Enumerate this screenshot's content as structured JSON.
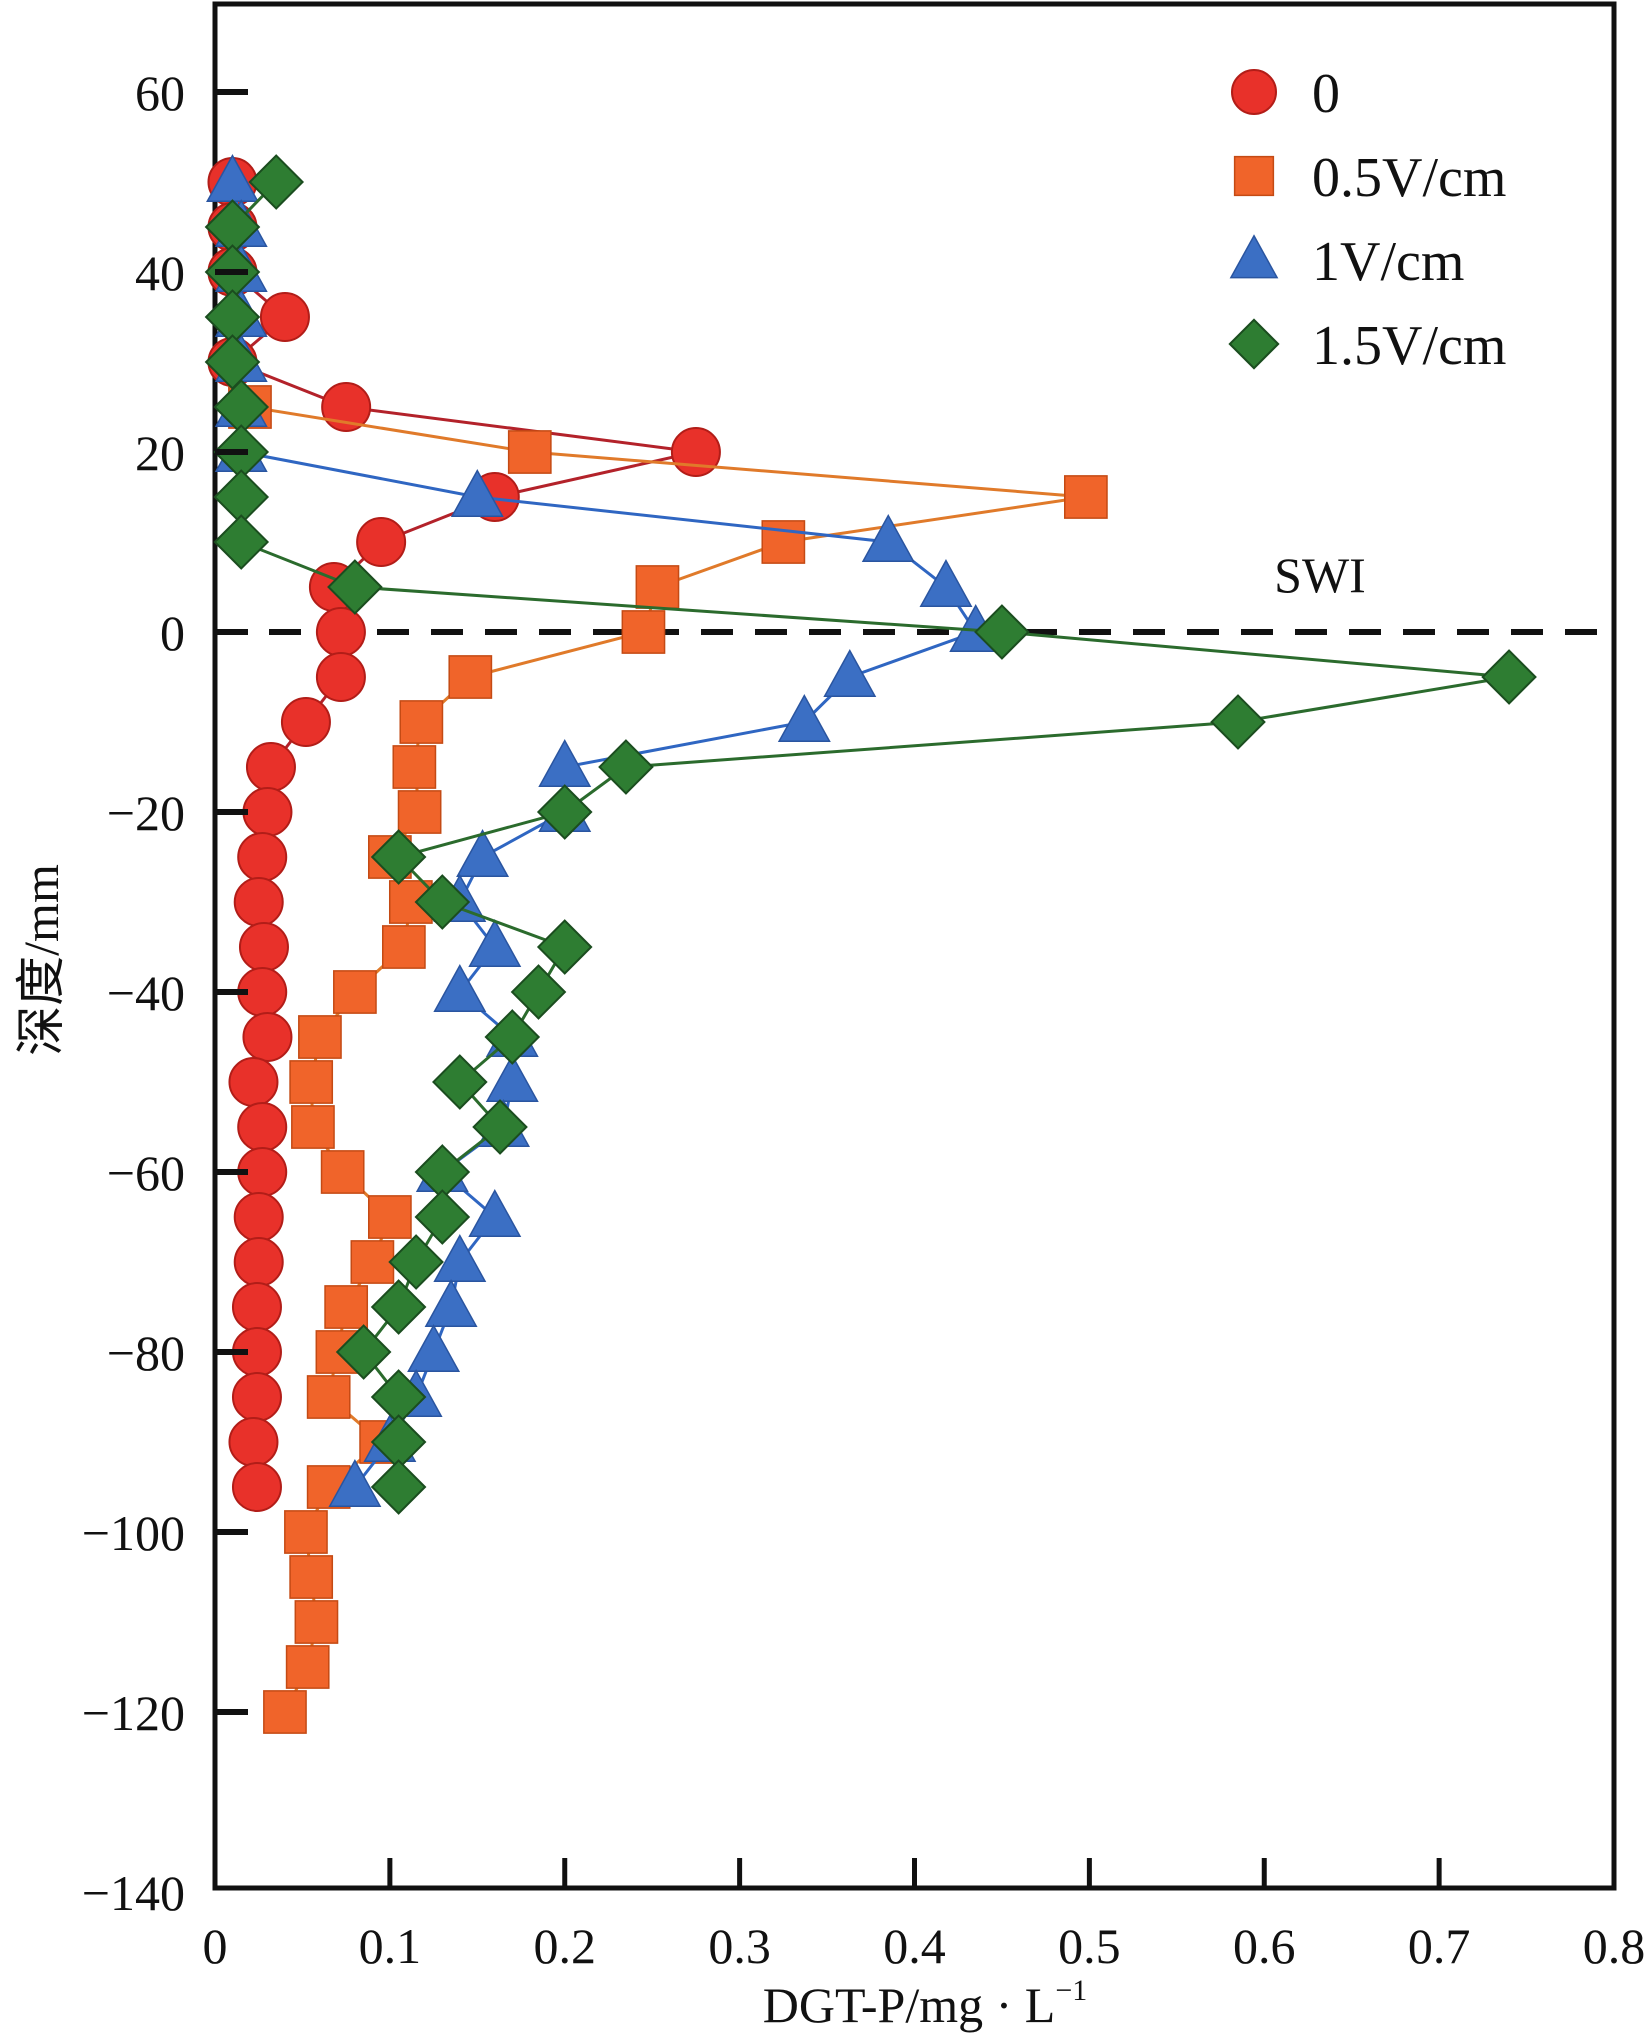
{
  "chart_data": {
    "type": "line",
    "title": "",
    "xlabel": "DGT-P/mg · L",
    "xlabel_superscript": "−1",
    "ylabel": "深度/mm",
    "xlim": [
      0,
      0.8
    ],
    "ylim": [
      -140,
      70
    ],
    "x_ticks": [
      0,
      0.1,
      0.2,
      0.3,
      0.4,
      0.5,
      0.6,
      0.7,
      0.8
    ],
    "x_tick_labels": [
      "0",
      "0.1",
      "0.2",
      "0.3",
      "0.4",
      "0.5",
      "0.6",
      "0.7",
      "0.8"
    ],
    "y_ticks": [
      60,
      40,
      20,
      0,
      -20,
      -40,
      -60,
      -80,
      -100,
      -120,
      -140
    ],
    "y_tick_labels": [
      "60",
      "40",
      "20",
      "0",
      "−20",
      "−40",
      "−60",
      "−80",
      "−100",
      "−120",
      "−140"
    ],
    "grid": false,
    "legend_position": "top-right",
    "annotations": [
      {
        "text": "SWI",
        "type": "reference-line",
        "y": 0,
        "style": "dashed"
      }
    ],
    "series": [
      {
        "name": "0",
        "marker": "circle",
        "color": "#e8312a",
        "points": [
          [
            0.01,
            50
          ],
          [
            0.01,
            45
          ],
          [
            0.01,
            40
          ],
          [
            0.04,
            35
          ],
          [
            0.01,
            30
          ],
          [
            0.075,
            25
          ],
          [
            0.275,
            20
          ],
          [
            0.16,
            15
          ],
          [
            0.095,
            10
          ],
          [
            0.068,
            5
          ],
          [
            0.072,
            0
          ],
          [
            0.072,
            -5
          ],
          [
            0.052,
            -10
          ],
          [
            0.032,
            -15
          ],
          [
            0.03,
            -20
          ],
          [
            0.027,
            -25
          ],
          [
            0.025,
            -30
          ],
          [
            0.028,
            -35
          ],
          [
            0.027,
            -40
          ],
          [
            0.03,
            -45
          ],
          [
            0.022,
            -50
          ],
          [
            0.027,
            -55
          ],
          [
            0.027,
            -60
          ],
          [
            0.025,
            -65
          ],
          [
            0.025,
            -70
          ],
          [
            0.024,
            -75
          ],
          [
            0.024,
            -80
          ],
          [
            0.024,
            -85
          ],
          [
            0.022,
            -90
          ],
          [
            0.024,
            -95
          ]
        ]
      },
      {
        "name": "0.5V/cm",
        "marker": "square",
        "color": "#f0642a",
        "points": [
          [
            0.02,
            25
          ],
          [
            0.18,
            20
          ],
          [
            0.498,
            15
          ],
          [
            0.325,
            10
          ],
          [
            0.253,
            5
          ],
          [
            0.245,
            0
          ],
          [
            0.146,
            -5
          ],
          [
            0.118,
            -10
          ],
          [
            0.114,
            -15
          ],
          [
            0.117,
            -20
          ],
          [
            0.1,
            -25
          ],
          [
            0.112,
            -30
          ],
          [
            0.108,
            -35
          ],
          [
            0.08,
            -40
          ],
          [
            0.06,
            -45
          ],
          [
            0.055,
            -50
          ],
          [
            0.056,
            -55
          ],
          [
            0.073,
            -60
          ],
          [
            0.1,
            -65
          ],
          [
            0.09,
            -70
          ],
          [
            0.075,
            -75
          ],
          [
            0.07,
            -80
          ],
          [
            0.065,
            -85
          ],
          [
            0.095,
            -90
          ],
          [
            0.065,
            -95
          ],
          [
            0.052,
            -100
          ],
          [
            0.055,
            -105
          ],
          [
            0.058,
            -110
          ],
          [
            0.053,
            -115
          ],
          [
            0.04,
            -120
          ]
        ]
      },
      {
        "name": "1V/cm",
        "marker": "triangle",
        "color": "#3b6fc4",
        "points": [
          [
            0.01,
            50
          ],
          [
            0.015,
            45
          ],
          [
            0.015,
            40
          ],
          [
            0.015,
            35
          ],
          [
            0.015,
            30
          ],
          [
            0.015,
            25
          ],
          [
            0.015,
            20
          ],
          [
            0.15,
            15
          ],
          [
            0.385,
            10
          ],
          [
            0.418,
            5
          ],
          [
            0.435,
            0
          ],
          [
            0.363,
            -5
          ],
          [
            0.337,
            -10
          ],
          [
            0.2,
            -15
          ],
          [
            0.2,
            -20
          ],
          [
            0.153,
            -25
          ],
          [
            0.14,
            -30
          ],
          [
            0.16,
            -35
          ],
          [
            0.14,
            -40
          ],
          [
            0.17,
            -45
          ],
          [
            0.17,
            -50
          ],
          [
            0.165,
            -55
          ],
          [
            0.13,
            -60
          ],
          [
            0.16,
            -65
          ],
          [
            0.14,
            -70
          ],
          [
            0.135,
            -75
          ],
          [
            0.125,
            -80
          ],
          [
            0.115,
            -85
          ],
          [
            0.1,
            -90
          ],
          [
            0.08,
            -95
          ]
        ]
      },
      {
        "name": "1.5V/cm",
        "marker": "diamond",
        "color": "#2e7d32",
        "points": [
          [
            0.035,
            50
          ],
          [
            0.01,
            45
          ],
          [
            0.01,
            40
          ],
          [
            0.01,
            35
          ],
          [
            0.01,
            30
          ],
          [
            0.015,
            25
          ],
          [
            0.015,
            20
          ],
          [
            0.015,
            15
          ],
          [
            0.015,
            10
          ],
          [
            0.08,
            5
          ],
          [
            0.45,
            0
          ],
          [
            0.74,
            -5
          ],
          [
            0.585,
            -10
          ],
          [
            0.235,
            -15
          ],
          [
            0.2,
            -20
          ],
          [
            0.105,
            -25
          ],
          [
            0.13,
            -30
          ],
          [
            0.2,
            -35
          ],
          [
            0.185,
            -40
          ],
          [
            0.17,
            -45
          ],
          [
            0.14,
            -50
          ],
          [
            0.163,
            -55
          ],
          [
            0.13,
            -60
          ],
          [
            0.13,
            -65
          ],
          [
            0.115,
            -70
          ],
          [
            0.105,
            -75
          ],
          [
            0.085,
            -80
          ],
          [
            0.105,
            -85
          ],
          [
            0.105,
            -90
          ],
          [
            0.105,
            -95
          ]
        ]
      }
    ]
  }
}
